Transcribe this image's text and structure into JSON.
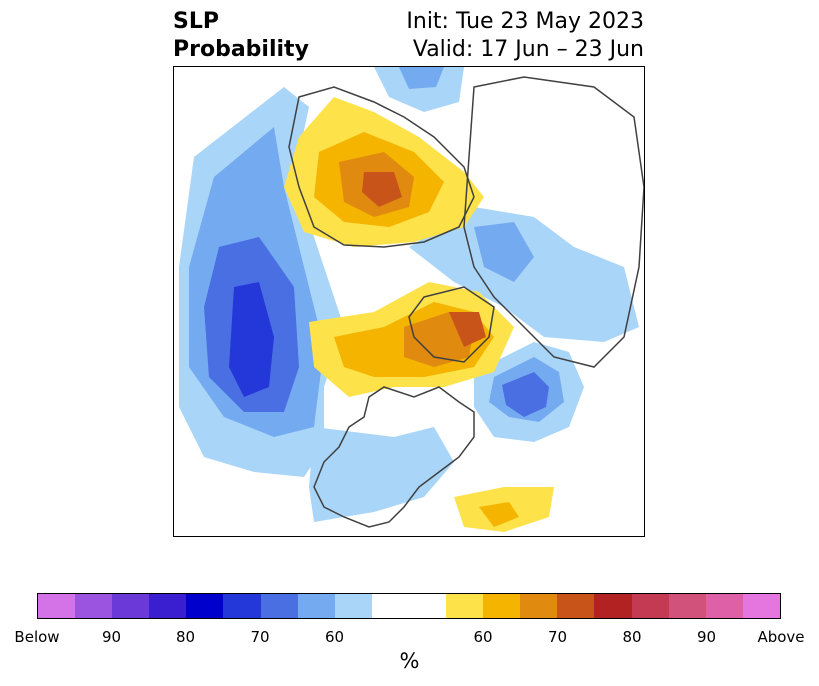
{
  "title": {
    "left_line1": "SLP",
    "left_line2": "Probability",
    "right_line1": "Init: Tue 23 May 2023",
    "right_line2": "Valid: 17 Jun – 23 Jun"
  },
  "colors": {
    "below": [
      "#d472e8",
      "#9b54e0",
      "#6a39d8",
      "#3a1fd0",
      "#0000cc",
      "#2437d8",
      "#4a6fe3",
      "#74aaf0",
      "#a9d5f8"
    ],
    "neutral": "#ffffff",
    "above": [
      "#fde24a",
      "#f4b400",
      "#e08a10",
      "#c8541a",
      "#b22222",
      "#c43a52",
      "#d1527a",
      "#de60a6",
      "#e576df"
    ],
    "coast": "#404040"
  },
  "colorbar": {
    "tick_labels": [
      "Below",
      "90",
      "80",
      "70",
      "60",
      "60",
      "70",
      "80",
      "90",
      "Above"
    ],
    "unit": "%"
  }
}
